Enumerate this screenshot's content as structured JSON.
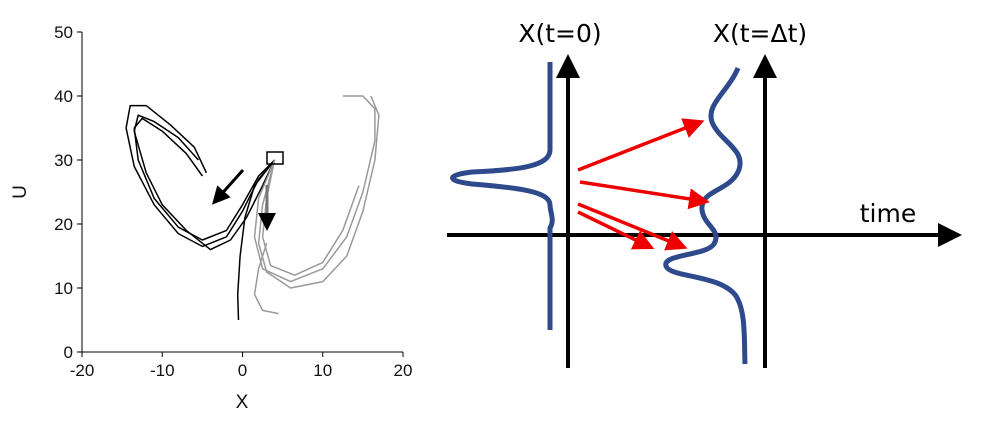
{
  "chart_data": {
    "type": "line",
    "xlabel": "X",
    "ylabel": "U",
    "xlim": [
      -20,
      20
    ],
    "xticks": [
      -20,
      -10,
      0,
      10,
      20
    ],
    "ylim": [
      0,
      50
    ],
    "yticks": [
      0,
      10,
      20,
      30,
      40,
      50
    ],
    "series": [
      {
        "color": "#000000",
        "x": [
          -4.5,
          -6,
          -9,
          -12,
          -14,
          -14.5,
          -13.5,
          -11,
          -8,
          -5,
          -2,
          0,
          2,
          4
        ],
        "values": [
          28,
          32,
          35.5,
          38.5,
          38.5,
          35,
          29,
          23,
          18.5,
          16.5,
          18,
          22,
          27,
          30
        ]
      },
      {
        "color": "#000000",
        "x": [
          -5,
          -7,
          -10,
          -12.5,
          -13.5,
          -13,
          -11,
          -8,
          -5,
          -2,
          0,
          2,
          4
        ],
        "values": [
          27.5,
          31,
          34.5,
          36.5,
          35,
          30,
          24,
          19.5,
          17.5,
          19,
          23,
          27.5,
          30
        ]
      },
      {
        "color": "#000000",
        "x": [
          -5.5,
          -8,
          -11,
          -13,
          -13.5,
          -12,
          -10,
          -7,
          -4,
          -1.5,
          0.5,
          2.5,
          4
        ],
        "values": [
          30,
          33.5,
          36,
          37,
          34.5,
          28,
          23,
          19,
          16,
          17.5,
          21,
          26,
          30
        ]
      },
      {
        "color": "#000000",
        "x": [
          4,
          1.5,
          0.3,
          -0.3,
          -0.6,
          -0.5
        ],
        "values": [
          30,
          26,
          21,
          15,
          9,
          5
        ]
      },
      {
        "color": "#999999",
        "x": [
          4,
          2,
          1.5,
          2.5,
          6,
          10,
          13,
          15,
          16.5,
          16.5,
          15,
          12.5
        ],
        "values": [
          30,
          24,
          18,
          13,
          11,
          13,
          18,
          25,
          33,
          38,
          40,
          40
        ]
      },
      {
        "color": "#999999",
        "x": [
          4,
          2.5,
          2,
          3,
          6,
          10,
          13,
          15,
          16.5,
          17,
          16
        ],
        "values": [
          30,
          23,
          17,
          12.5,
          10,
          11,
          15,
          22,
          30,
          37,
          40
        ]
      },
      {
        "color": "#999999",
        "x": [
          4,
          3,
          2.5,
          3.5,
          6.5,
          10,
          12.5,
          14.5
        ],
        "values": [
          30,
          24,
          18,
          13.5,
          12,
          14,
          19,
          26
        ]
      },
      {
        "color": "#999999",
        "x": [
          4.5,
          2.5,
          1.5,
          2,
          3
        ],
        "values": [
          6,
          6.5,
          9,
          13,
          17
        ]
      }
    ]
  },
  "diagram": {
    "left_label": "X(t=0)",
    "right_label": "X(t=Δt)",
    "axis_label": "time"
  }
}
